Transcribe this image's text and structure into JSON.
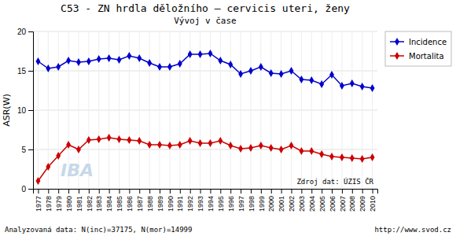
{
  "chart_data": {
    "type": "line",
    "title": "C53 - ZN hrdla děložního – cervicis uteri, ženy",
    "subtitle": "Vývoj v čase",
    "y_label": "ASR(W)",
    "x": [
      1977,
      1978,
      1979,
      1980,
      1981,
      1982,
      1983,
      1984,
      1985,
      1986,
      1987,
      1988,
      1989,
      1990,
      1991,
      1992,
      1993,
      1994,
      1995,
      1996,
      1997,
      1998,
      1999,
      2000,
      2001,
      2002,
      2003,
      2004,
      2005,
      2006,
      2007,
      2008,
      2009,
      2010
    ],
    "series": [
      {
        "name": "Incidence",
        "color": "#0000cc",
        "marker": "diamond",
        "values": [
          16.2,
          15.3,
          15.5,
          16.3,
          16.1,
          16.2,
          16.5,
          16.6,
          16.4,
          16.9,
          16.6,
          16.0,
          15.5,
          15.5,
          15.9,
          17.1,
          17.1,
          17.2,
          16.3,
          15.8,
          14.6,
          15.0,
          15.5,
          14.7,
          14.6,
          15.0,
          13.9,
          13.8,
          13.3,
          14.5,
          13.1,
          13.4,
          13.0,
          12.8
        ]
      },
      {
        "name": "Mortalita",
        "color": "#cc0000",
        "marker": "diamond",
        "values": [
          1.0,
          2.8,
          4.2,
          5.6,
          5.0,
          6.2,
          6.3,
          6.5,
          6.3,
          6.2,
          6.1,
          5.6,
          5.6,
          5.5,
          5.6,
          6.1,
          5.8,
          5.8,
          6.1,
          5.5,
          5.1,
          5.2,
          5.5,
          5.2,
          5.0,
          5.5,
          4.8,
          4.8,
          4.4,
          4.1,
          4.0,
          3.9,
          3.8,
          4.0
        ]
      }
    ],
    "xlim": [
      1976.5,
      2010.5
    ],
    "xticks": [
      1977,
      1978,
      1979,
      1980,
      1981,
      1982,
      1983,
      1984,
      1985,
      1986,
      1987,
      1988,
      1989,
      1990,
      1991,
      1992,
      1993,
      1994,
      1995,
      1996,
      1997,
      1998,
      1999,
      2000,
      2001,
      2002,
      2003,
      2004,
      2005,
      2006,
      2007,
      2008,
      2009,
      2010
    ],
    "ylim": [
      0,
      20
    ],
    "yticks": [
      0,
      5,
      10,
      15,
      20
    ],
    "grid": true,
    "legend": "right",
    "annotations": [
      "Zdroj dat: ÚZIS ČR",
      "IBA",
      "Analyzovaná data: N(inc)=37175, N(mor)=14999",
      "http://www.svod.cz"
    ]
  }
}
